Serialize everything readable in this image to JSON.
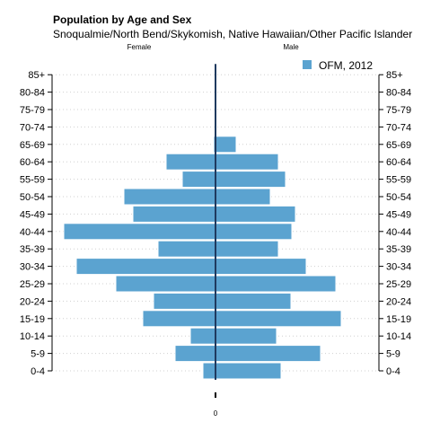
{
  "chart_data": {
    "type": "bar",
    "title": "Population by Age and Sex",
    "subtitle": "Snoqualmie/North Bend/Skykomish, Native Hawaiian/Other Pacific Islander",
    "left_label": "Female",
    "right_label": "Male",
    "zero_label": "0",
    "categories": [
      "0-4",
      "5-9",
      "10-14",
      "15-19",
      "20-24",
      "25-29",
      "30-34",
      "35-39",
      "40-44",
      "45-49",
      "50-54",
      "55-59",
      "60-64",
      "65-69",
      "70-74",
      "75-79",
      "80-84",
      "85+"
    ],
    "series": [
      {
        "name": "OFM, 2012",
        "side": "female",
        "values": [
          1.4,
          4.5,
          2.8,
          8.1,
          6.9,
          11.1,
          15.5,
          6.4,
          16.9,
          9.2,
          10.2,
          3.7,
          5.5,
          0.2,
          0.1,
          0.1,
          0.1,
          0.1
        ]
      },
      {
        "name": "OFM, 2012",
        "side": "male",
        "values": [
          7.3,
          11.7,
          6.8,
          14.0,
          8.4,
          13.4,
          10.1,
          7.0,
          8.5,
          8.9,
          6.1,
          7.8,
          7.0,
          2.3,
          0.1,
          0.1,
          0.1,
          0.1
        ]
      }
    ],
    "legend": {
      "label": "OFM, 2012",
      "position": "top-right"
    },
    "grid": "dotted horizontal",
    "color": "#5BA3D0",
    "axis_color": "#1f3a5f"
  }
}
